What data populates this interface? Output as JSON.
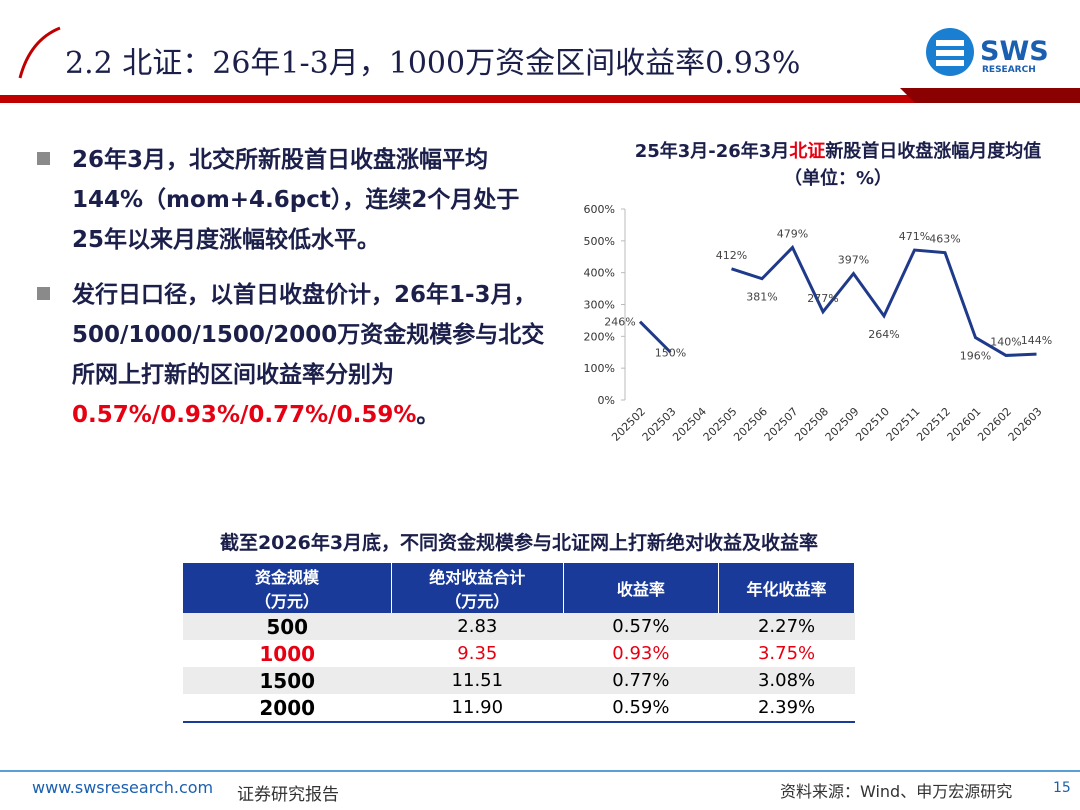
{
  "header": {
    "title": "2.2 北证：26年1-3月，1000万资金区间收益率0.93%",
    "logo": "SWS",
    "logo_sub": "RESEARCH"
  },
  "bullets": [
    {
      "text": "26年3月，北交所新股首日收盘涨幅平均144%（mom+4.6pct），连续2个月处于25年以来月度涨幅较低水平。"
    },
    {
      "text": "发行日口径，以首日收盘价计，26年1-3月，500/1000/1500/2000万资金规模参与北交所网上打新的区间收益率分别为",
      "highlight": "0.57%/0.93%/0.77%/0.59%",
      "end": "。"
    }
  ],
  "chart_data": {
    "type": "line",
    "title_parts": [
      "25年3月-26年3月",
      "北证",
      "新股首日收盘涨幅月度均值（单位：%）"
    ],
    "categories": [
      "202502",
      "202503",
      "202504",
      "202505",
      "202506",
      "202507",
      "202508",
      "202509",
      "202510",
      "202511",
      "202512",
      "202601",
      "202602",
      "202603"
    ],
    "values": [
      246,
      150,
      null,
      412,
      381,
      479,
      277,
      397,
      264,
      471,
      463,
      196,
      140,
      144
    ],
    "value_labels": [
      "246%",
      "150%",
      null,
      "412%",
      "381%",
      "479%",
      "277%",
      "397%",
      "264%",
      "471%",
      "463%",
      "196%",
      "140%",
      "144%"
    ],
    "color": "#1f3a8a",
    "ylim": [
      0,
      600
    ],
    "yticks": [
      {
        "value": 0,
        "label": "0%"
      },
      {
        "value": 100,
        "label": "100%"
      },
      {
        "value": 200,
        "label": "200%"
      },
      {
        "value": 300,
        "label": "300%"
      },
      {
        "value": 400,
        "label": "400%"
      },
      {
        "value": 500,
        "label": "500%"
      },
      {
        "value": 600,
        "label": "600%"
      }
    ]
  },
  "table": {
    "title": "截至2026年3月底，不同资金规模参与北证网上打新绝对收益及收益率",
    "header": [
      "资金规模\n（万元）",
      "绝对收益合计\n（万元）",
      "收益率",
      "年化收益率"
    ],
    "rows": [
      [
        "500",
        "2.83",
        "0.57%",
        "2.27%"
      ],
      [
        "1000",
        "9.35",
        "0.93%",
        "3.75%"
      ],
      [
        "1500",
        "11.51",
        "0.77%",
        "3.08%"
      ],
      [
        "2000",
        "11.90",
        "0.59%",
        "2.39%"
      ]
    ]
  },
  "footer": {
    "url": "www.swsresearch.com",
    "type": "证券研究报告",
    "source": "资料来源：Wind、申万宏源研究",
    "page": "15"
  }
}
